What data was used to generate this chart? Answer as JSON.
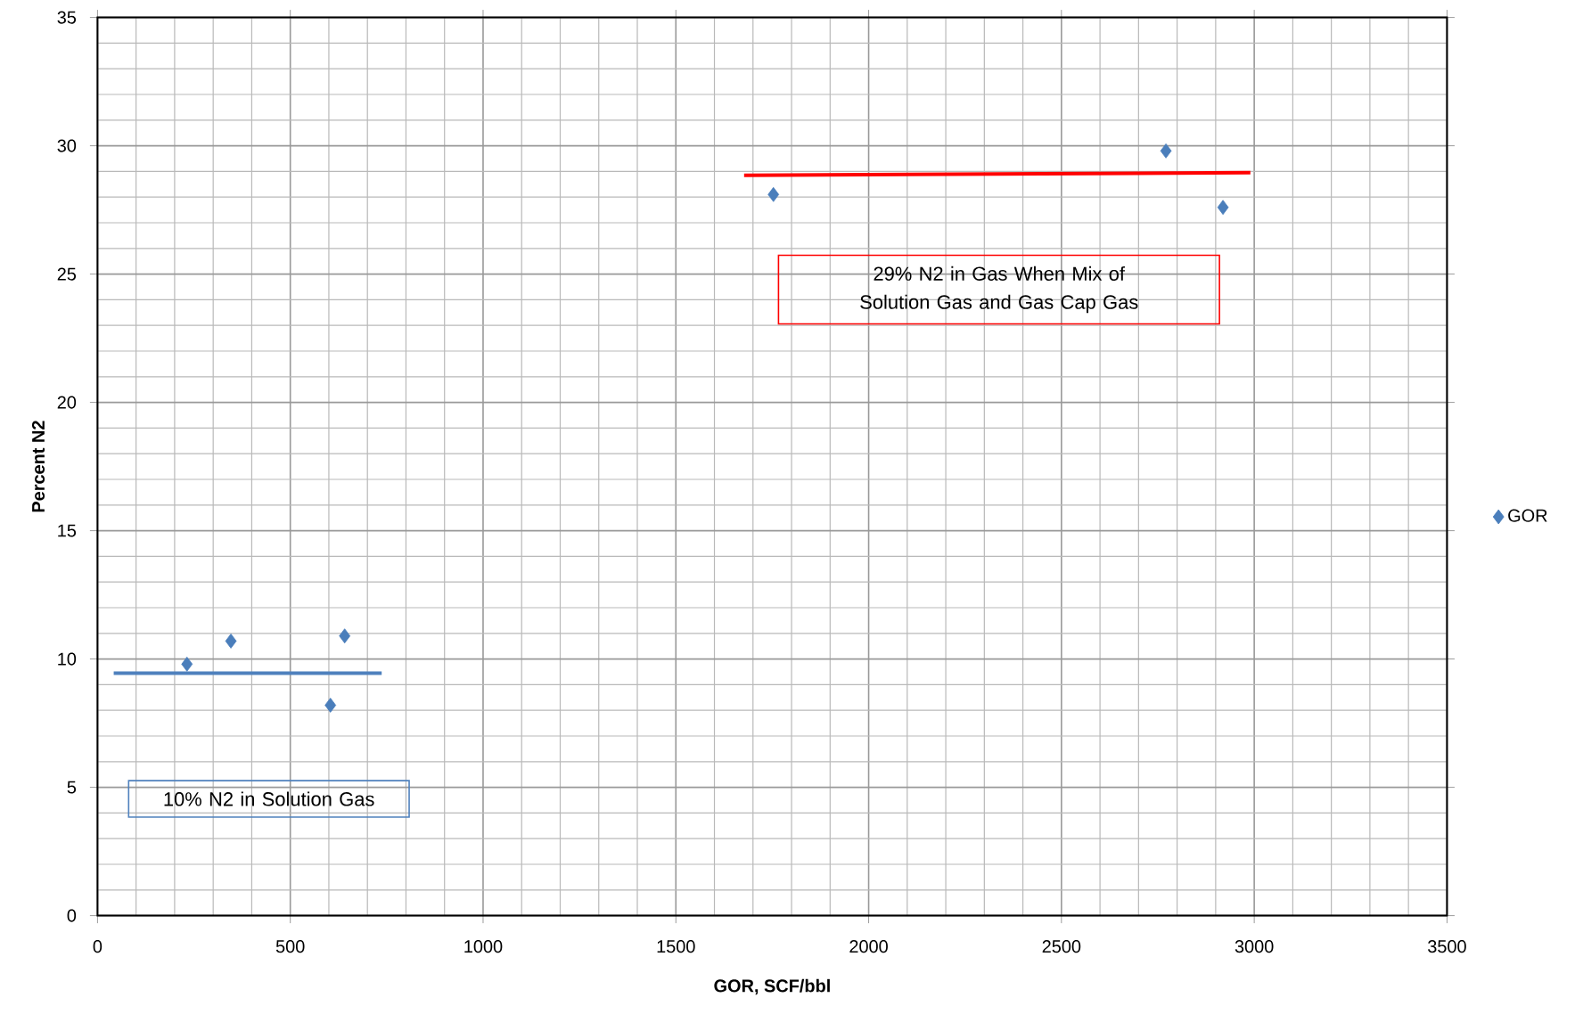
{
  "chart_data": {
    "type": "scatter",
    "xlabel": "GOR, SCF/bbl",
    "ylabel": "Percent N2",
    "xlim": [
      0,
      3500
    ],
    "xticks": [
      0,
      500,
      1000,
      1500,
      2000,
      2500,
      3000,
      3500
    ],
    "ylim": [
      0,
      35
    ],
    "yticks": [
      0,
      5,
      10,
      15,
      20,
      25,
      30,
      35
    ],
    "grid": true,
    "legend": "right",
    "series": [
      {
        "name": "GOR",
        "color": "#4a7ebb",
        "marker": "diamond",
        "x": [
          232,
          346,
          641,
          604,
          1753,
          2771,
          2919
        ],
        "values": [
          9.8,
          10.7,
          10.9,
          8.2,
          28.1,
          29.8,
          27.6
        ]
      },
      {
        "type": "line",
        "marker": "none",
        "color": "#4f81bd",
        "x": [
          42,
          737
        ],
        "values": [
          9.45,
          9.45
        ]
      },
      {
        "type": "line",
        "marker": "none",
        "color": "#ff0000",
        "x": [
          1677,
          2990
        ],
        "values": [
          28.85,
          28.95
        ]
      }
    ],
    "annotations": [
      "10% N2 in Solution Gas",
      "29% N2 in Gas When Mix of Solution Gas and Gas Cap Gas"
    ]
  }
}
